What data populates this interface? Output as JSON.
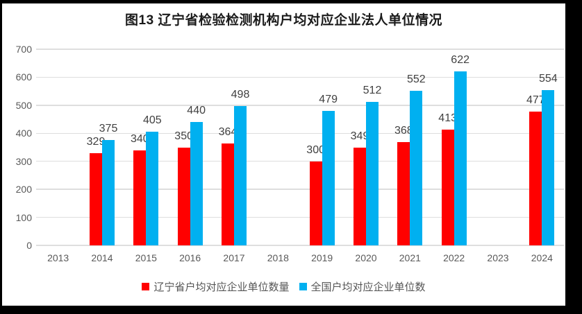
{
  "chart_data": {
    "type": "bar",
    "title": "图13 辽宁省检验检测机构户均对应企业法人单位情况",
    "categories": [
      "2013",
      "2014",
      "2015",
      "2016",
      "2017",
      "2018",
      "2019",
      "2020",
      "2021",
      "2022",
      "2023",
      "2024"
    ],
    "series": [
      {
        "name": "辽宁省户均对应企业单位数量",
        "key": "liaoning",
        "color": "#ff0000",
        "values": [
          null,
          329,
          340,
          350,
          364,
          null,
          300,
          349,
          368,
          413,
          null,
          477
        ]
      },
      {
        "name": "全国户均对应企业单位数",
        "key": "national",
        "color": "#00b0f0",
        "values": [
          null,
          375,
          405,
          440,
          498,
          null,
          479,
          512,
          552,
          622,
          null,
          554
        ]
      }
    ],
    "xlabel": "",
    "ylabel": "",
    "ylim": [
      0,
      700
    ],
    "ytick_step": 100,
    "grid": true,
    "data_labels": true,
    "legend_position": "bottom"
  },
  "style": {
    "gridline_color": "#dedede",
    "tick_label_color": "#595959",
    "data_label_color": "#404040",
    "title_color": "#1a1a1a",
    "frame_color": "#000000",
    "background_color": "#ffffff"
  }
}
